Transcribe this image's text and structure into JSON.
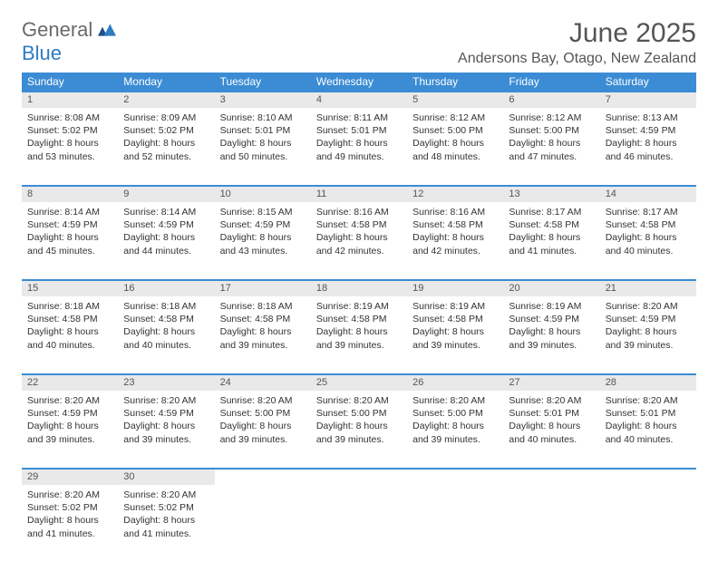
{
  "logo": {
    "line1": "General",
    "line2": "Blue"
  },
  "title": "June 2025",
  "location": "Andersons Bay, Otago, New Zealand",
  "colors": {
    "header_bg": "#3b8cd4",
    "header_text": "#ffffff",
    "daynum_bg": "#e9e9e9",
    "row_divider": "#3b8cd4",
    "page_bg": "#ffffff",
    "text": "#333333",
    "title_text": "#555555",
    "logo_gray": "#6a6a6a",
    "logo_blue": "#2f7cc0"
  },
  "weekdays": [
    "Sunday",
    "Monday",
    "Tuesday",
    "Wednesday",
    "Thursday",
    "Friday",
    "Saturday"
  ],
  "weeks": [
    {
      "days": [
        {
          "n": "1",
          "sunrise": "Sunrise: 8:08 AM",
          "sunset": "Sunset: 5:02 PM",
          "daylight": "Daylight: 8 hours and 53 minutes."
        },
        {
          "n": "2",
          "sunrise": "Sunrise: 8:09 AM",
          "sunset": "Sunset: 5:02 PM",
          "daylight": "Daylight: 8 hours and 52 minutes."
        },
        {
          "n": "3",
          "sunrise": "Sunrise: 8:10 AM",
          "sunset": "Sunset: 5:01 PM",
          "daylight": "Daylight: 8 hours and 50 minutes."
        },
        {
          "n": "4",
          "sunrise": "Sunrise: 8:11 AM",
          "sunset": "Sunset: 5:01 PM",
          "daylight": "Daylight: 8 hours and 49 minutes."
        },
        {
          "n": "5",
          "sunrise": "Sunrise: 8:12 AM",
          "sunset": "Sunset: 5:00 PM",
          "daylight": "Daylight: 8 hours and 48 minutes."
        },
        {
          "n": "6",
          "sunrise": "Sunrise: 8:12 AM",
          "sunset": "Sunset: 5:00 PM",
          "daylight": "Daylight: 8 hours and 47 minutes."
        },
        {
          "n": "7",
          "sunrise": "Sunrise: 8:13 AM",
          "sunset": "Sunset: 4:59 PM",
          "daylight": "Daylight: 8 hours and 46 minutes."
        }
      ]
    },
    {
      "days": [
        {
          "n": "8",
          "sunrise": "Sunrise: 8:14 AM",
          "sunset": "Sunset: 4:59 PM",
          "daylight": "Daylight: 8 hours and 45 minutes."
        },
        {
          "n": "9",
          "sunrise": "Sunrise: 8:14 AM",
          "sunset": "Sunset: 4:59 PM",
          "daylight": "Daylight: 8 hours and 44 minutes."
        },
        {
          "n": "10",
          "sunrise": "Sunrise: 8:15 AM",
          "sunset": "Sunset: 4:59 PM",
          "daylight": "Daylight: 8 hours and 43 minutes."
        },
        {
          "n": "11",
          "sunrise": "Sunrise: 8:16 AM",
          "sunset": "Sunset: 4:58 PM",
          "daylight": "Daylight: 8 hours and 42 minutes."
        },
        {
          "n": "12",
          "sunrise": "Sunrise: 8:16 AM",
          "sunset": "Sunset: 4:58 PM",
          "daylight": "Daylight: 8 hours and 42 minutes."
        },
        {
          "n": "13",
          "sunrise": "Sunrise: 8:17 AM",
          "sunset": "Sunset: 4:58 PM",
          "daylight": "Daylight: 8 hours and 41 minutes."
        },
        {
          "n": "14",
          "sunrise": "Sunrise: 8:17 AM",
          "sunset": "Sunset: 4:58 PM",
          "daylight": "Daylight: 8 hours and 40 minutes."
        }
      ]
    },
    {
      "days": [
        {
          "n": "15",
          "sunrise": "Sunrise: 8:18 AM",
          "sunset": "Sunset: 4:58 PM",
          "daylight": "Daylight: 8 hours and 40 minutes."
        },
        {
          "n": "16",
          "sunrise": "Sunrise: 8:18 AM",
          "sunset": "Sunset: 4:58 PM",
          "daylight": "Daylight: 8 hours and 40 minutes."
        },
        {
          "n": "17",
          "sunrise": "Sunrise: 8:18 AM",
          "sunset": "Sunset: 4:58 PM",
          "daylight": "Daylight: 8 hours and 39 minutes."
        },
        {
          "n": "18",
          "sunrise": "Sunrise: 8:19 AM",
          "sunset": "Sunset: 4:58 PM",
          "daylight": "Daylight: 8 hours and 39 minutes."
        },
        {
          "n": "19",
          "sunrise": "Sunrise: 8:19 AM",
          "sunset": "Sunset: 4:58 PM",
          "daylight": "Daylight: 8 hours and 39 minutes."
        },
        {
          "n": "20",
          "sunrise": "Sunrise: 8:19 AM",
          "sunset": "Sunset: 4:59 PM",
          "daylight": "Daylight: 8 hours and 39 minutes."
        },
        {
          "n": "21",
          "sunrise": "Sunrise: 8:20 AM",
          "sunset": "Sunset: 4:59 PM",
          "daylight": "Daylight: 8 hours and 39 minutes."
        }
      ]
    },
    {
      "days": [
        {
          "n": "22",
          "sunrise": "Sunrise: 8:20 AM",
          "sunset": "Sunset: 4:59 PM",
          "daylight": "Daylight: 8 hours and 39 minutes."
        },
        {
          "n": "23",
          "sunrise": "Sunrise: 8:20 AM",
          "sunset": "Sunset: 4:59 PM",
          "daylight": "Daylight: 8 hours and 39 minutes."
        },
        {
          "n": "24",
          "sunrise": "Sunrise: 8:20 AM",
          "sunset": "Sunset: 5:00 PM",
          "daylight": "Daylight: 8 hours and 39 minutes."
        },
        {
          "n": "25",
          "sunrise": "Sunrise: 8:20 AM",
          "sunset": "Sunset: 5:00 PM",
          "daylight": "Daylight: 8 hours and 39 minutes."
        },
        {
          "n": "26",
          "sunrise": "Sunrise: 8:20 AM",
          "sunset": "Sunset: 5:00 PM",
          "daylight": "Daylight: 8 hours and 39 minutes."
        },
        {
          "n": "27",
          "sunrise": "Sunrise: 8:20 AM",
          "sunset": "Sunset: 5:01 PM",
          "daylight": "Daylight: 8 hours and 40 minutes."
        },
        {
          "n": "28",
          "sunrise": "Sunrise: 8:20 AM",
          "sunset": "Sunset: 5:01 PM",
          "daylight": "Daylight: 8 hours and 40 minutes."
        }
      ]
    },
    {
      "days": [
        {
          "n": "29",
          "sunrise": "Sunrise: 8:20 AM",
          "sunset": "Sunset: 5:02 PM",
          "daylight": "Daylight: 8 hours and 41 minutes."
        },
        {
          "n": "30",
          "sunrise": "Sunrise: 8:20 AM",
          "sunset": "Sunset: 5:02 PM",
          "daylight": "Daylight: 8 hours and 41 minutes."
        },
        {
          "empty": true
        },
        {
          "empty": true
        },
        {
          "empty": true
        },
        {
          "empty": true
        },
        {
          "empty": true
        }
      ]
    }
  ]
}
